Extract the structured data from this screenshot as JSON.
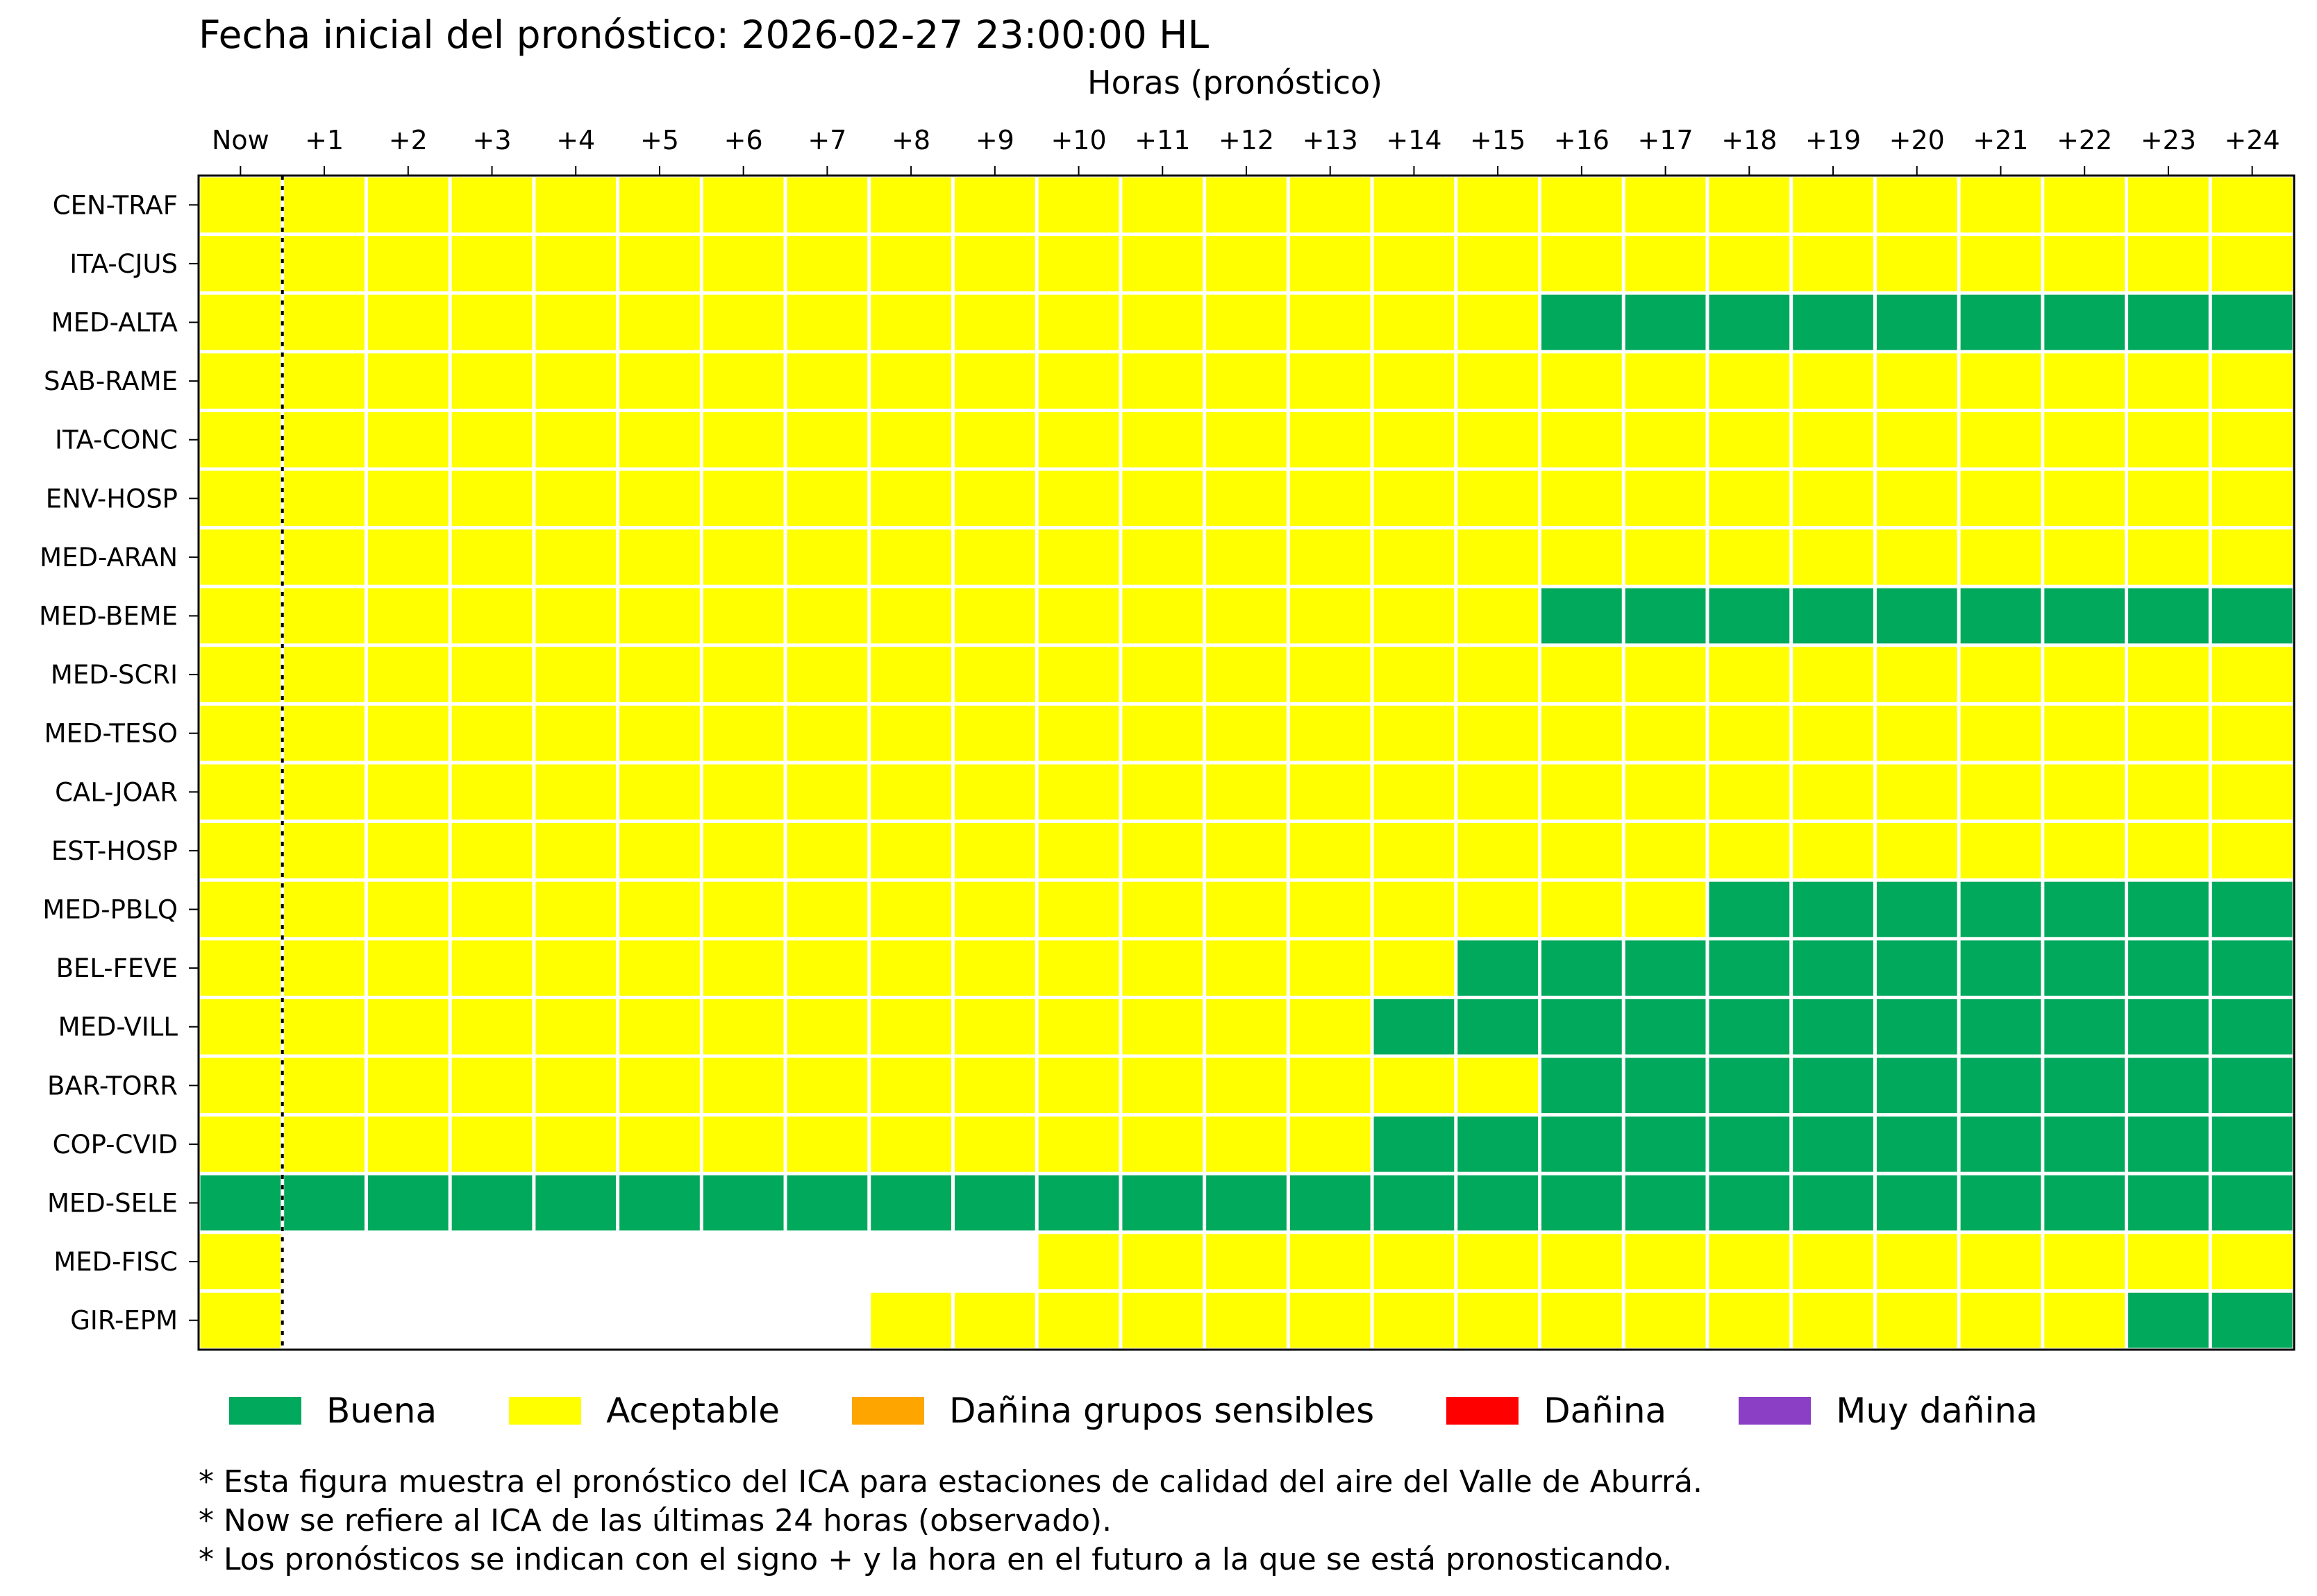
{
  "chart_data": {
    "type": "heatmap",
    "title": "Fecha inicial del pronóstico: 2026-02-27 23:00:00 HL",
    "xlabel": "Horas (pronóstico)",
    "ylabel": "",
    "x": [
      "Now",
      "+1",
      "+2",
      "+3",
      "+4",
      "+5",
      "+6",
      "+7",
      "+8",
      "+9",
      "+10",
      "+11",
      "+12",
      "+13",
      "+14",
      "+15",
      "+16",
      "+17",
      "+18",
      "+19",
      "+20",
      "+21",
      "+22",
      "+23",
      "+24"
    ],
    "y": [
      "CEN-TRAF",
      "ITA-CJUS",
      "MED-ALTA",
      "SAB-RAME",
      "ITA-CONC",
      "ENV-HOSP",
      "MED-ARAN",
      "MED-BEME",
      "MED-SCRI",
      "MED-TESO",
      "CAL-JOAR",
      "EST-HOSP",
      "MED-PBLQ",
      "BEL-FEVE",
      "MED-VILL",
      "BAR-TORR",
      "COP-CVID",
      "MED-SELE",
      "MED-FISC",
      "GIR-EPM"
    ],
    "categories": {
      "Buena": "#00a95c",
      "Aceptable": "#ffff00",
      "Dañina grupos sensibles": "#ffa500",
      "Dañina": "#ff0000",
      "Muy dañina": "#8b3fc4"
    },
    "code_map": {
      "B": "Buena",
      "A": "Aceptable",
      "-": null
    },
    "values": [
      "AAAAAAAAAAAAAAAAAAAAAAAAA",
      "AAAAAAAAAAAAAAAAAAAAAAAAA",
      "AAAAAAAAAAAAAAAABBBBBBBBB",
      "AAAAAAAAAAAAAAAAAAAAAAAAA",
      "AAAAAAAAAAAAAAAAAAAAAAAAA",
      "AAAAAAAAAAAAAAAAAAAAAAAAA",
      "AAAAAAAAAAAAAAAAAAAAAAAAA",
      "AAAAAAAAAAAAAAAABBBBBBBBB",
      "AAAAAAAAAAAAAAAAAAAAAAAAA",
      "AAAAAAAAAAAAAAAAAAAAAAAAA",
      "AAAAAAAAAAAAAAAAAAAAAAAAA",
      "AAAAAAAAAAAAAAAAAAAAAAAAA",
      "AAAAAAAAAAAAAAAAAABBBBBBB",
      "AAAAAAAAAAAAAAABBBBBBBBBB",
      "AAAAAAAAAAAAAABBBBBBBBBBB",
      "AAAAAAAAAAAAAAAABBBBBBBBB",
      "AAAAAAAAAAAAAABBBBBBBBBBB",
      "BBBBBBBBBBBBBBBBBBBBBBBBB",
      "A---------AAAAAAAAAAAAAAA",
      "A-------AAAAAAAAAAAAAAABB"
    ],
    "now_separator": "dotted line between Now and +1",
    "legend_placement": "bottom",
    "grid": false
  },
  "legend": [
    {
      "label": "Buena",
      "color": "#00a95c"
    },
    {
      "label": "Aceptable",
      "color": "#ffff00"
    },
    {
      "label": "Dañina grupos sensibles",
      "color": "#ffa500"
    },
    {
      "label": "Dañina",
      "color": "#ff0000"
    },
    {
      "label": "Muy dañina",
      "color": "#8b3fc4"
    }
  ],
  "notes": [
    "* Esta figura muestra el pronóstico del ICA para estaciones de calidad del aire del Valle de Aburrá.",
    "* Now se refiere al ICA de las últimas 24 horas (observado).",
    "* Los pronósticos se indican con el signo + y la hora en el futuro a la que se está pronosticando."
  ]
}
